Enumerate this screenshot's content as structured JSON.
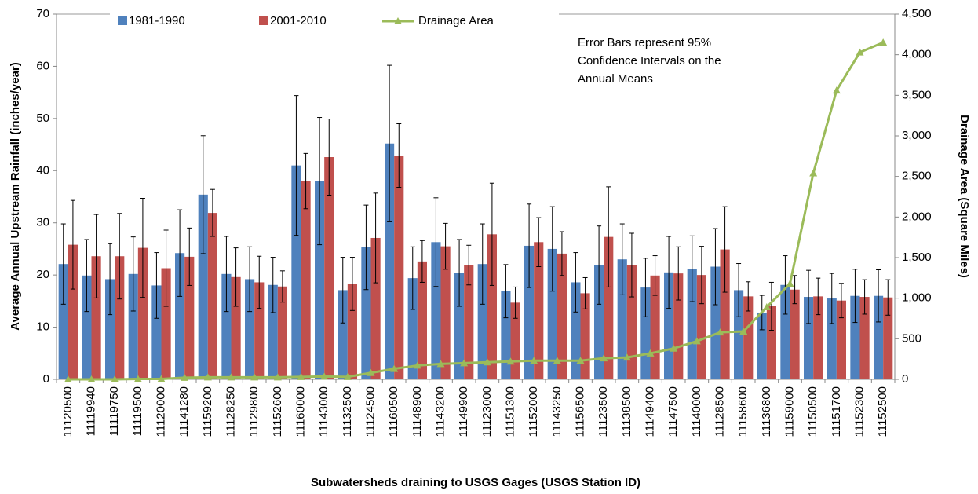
{
  "chart_data": {
    "type": "bar",
    "x_label": "Subwatersheds draining to USGS Gages (USGS Station ID)",
    "y_label": "Average Annual Upstream Rainfall (inches/year)",
    "y2_label": "Drainage Area (Square Miles)",
    "annotation": [
      "Error Bars represent 95%",
      "Confidence Intervals on the",
      "Annual Means"
    ],
    "categories": [
      "11120500",
      "11119940",
      "11119750",
      "11119500",
      "11120000",
      "11141280",
      "11159200",
      "11128250",
      "11129800",
      "11152600",
      "11160000",
      "11143000",
      "11132500",
      "11124500",
      "11160500",
      "11148900",
      "11143200",
      "11149900",
      "11123000",
      "11151300",
      "11152000",
      "11143250",
      "11156500",
      "11123500",
      "11138500",
      "11149400",
      "11147500",
      "11140000",
      "11128500",
      "11158600",
      "11136800",
      "11159000",
      "11150500",
      "11151700",
      "11152300",
      "11152500"
    ],
    "series": [
      {
        "name": "1981-1990",
        "type": "bar",
        "color": "#4f81bd",
        "values": [
          22.1,
          19.9,
          19.2,
          20.2,
          18.0,
          24.2,
          35.4,
          20.2,
          19.2,
          18.1,
          41.0,
          38.0,
          17.1,
          25.3,
          45.2,
          19.4,
          26.3,
          20.4,
          22.1,
          16.9,
          25.6,
          25.0,
          18.6,
          21.9,
          23.0,
          17.6,
          20.5,
          21.2,
          21.6,
          17.1,
          12.8,
          18.1,
          15.8,
          15.5,
          16.0,
          16.0
        ],
        "errors": [
          7.7,
          6.9,
          6.8,
          7.1,
          6.3,
          8.3,
          11.3,
          7.2,
          6.2,
          5.3,
          13.4,
          12.2,
          6.3,
          8.1,
          15.0,
          6.0,
          8.5,
          6.4,
          7.7,
          5.1,
          8.0,
          8.1,
          5.7,
          7.5,
          6.8,
          5.6,
          6.9,
          6.3,
          7.3,
          5.1,
          3.3,
          5.6,
          5.1,
          4.8,
          5.1,
          5.0
        ]
      },
      {
        "name": "2001-2010",
        "type": "bar",
        "color": "#c0504d",
        "values": [
          25.8,
          23.6,
          23.6,
          25.2,
          21.3,
          23.5,
          31.9,
          19.6,
          18.6,
          17.8,
          38.0,
          42.6,
          18.3,
          27.1,
          42.9,
          22.6,
          25.5,
          21.9,
          27.8,
          14.7,
          26.3,
          24.1,
          16.5,
          27.3,
          21.9,
          19.9,
          20.3,
          20.0,
          24.9,
          15.9,
          14.0,
          17.2,
          15.9,
          15.1,
          15.8,
          15.7
        ],
        "errors": [
          8.5,
          8.0,
          8.2,
          9.5,
          7.3,
          5.5,
          4.5,
          5.6,
          5.0,
          3.0,
          5.3,
          7.3,
          5.1,
          8.6,
          6.1,
          4.0,
          4.4,
          3.8,
          9.8,
          3.0,
          4.7,
          4.2,
          3.0,
          9.6,
          6.1,
          3.8,
          5.1,
          5.5,
          8.2,
          2.8,
          4.6,
          2.7,
          3.5,
          3.3,
          3.3,
          3.4
        ]
      },
      {
        "name": "Drainage Area",
        "type": "line",
        "axis": "y2",
        "color": "#9bbb59",
        "values": [
          0,
          0,
          0,
          5,
          5,
          20,
          25,
          25,
          25,
          25,
          30,
          35,
          30,
          80,
          130,
          170,
          190,
          200,
          210,
          220,
          230,
          230,
          230,
          260,
          270,
          320,
          380,
          470,
          580,
          590,
          890,
          1180,
          2540,
          3560,
          4030,
          4150
        ]
      }
    ],
    "ylim": [
      0,
      70
    ],
    "yticks": [
      0,
      10,
      20,
      30,
      40,
      50,
      60,
      70
    ],
    "y2lim": [
      0,
      4500
    ],
    "y2ticks": [
      0,
      500,
      {
        "value": 1000,
        "label": "1,000"
      },
      {
        "value": 1500,
        "label": "1,500"
      },
      {
        "value": 2000,
        "label": "2,000"
      },
      {
        "value": 2500,
        "label": "2,500"
      },
      {
        "value": 3000,
        "label": "3,000"
      },
      {
        "value": 3500,
        "label": "3,500"
      },
      {
        "value": 4000,
        "label": "4,000"
      },
      {
        "value": 4500,
        "label": "4,500"
      }
    ],
    "grid": false,
    "legend": "top"
  }
}
